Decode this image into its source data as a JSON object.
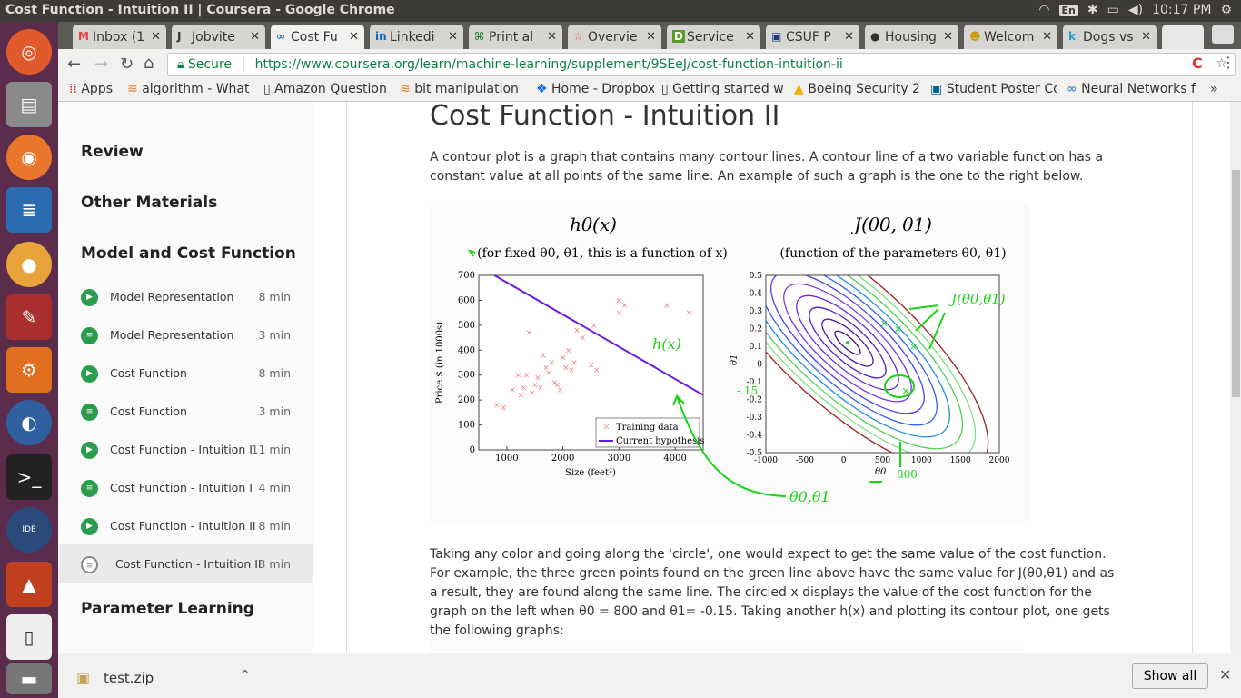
{
  "window": {
    "title": "Cost Function - Intuition II | Coursera - Google Chrome",
    "time": "10:17 PM",
    "lang": "En"
  },
  "tabs": [
    {
      "label": "Inbox (1",
      "icon": "gmail-icon"
    },
    {
      "label": "Jobvite",
      "icon": "jobvite-icon"
    },
    {
      "label": "Cost Fu",
      "icon": "coursera-icon"
    },
    {
      "label": "Linkedi",
      "icon": "linkedin-icon"
    },
    {
      "label": "Print al",
      "icon": "print-icon"
    },
    {
      "label": "Overvie",
      "icon": "star-icon"
    },
    {
      "label": "Service",
      "icon": "d-icon"
    },
    {
      "label": "CSUF P",
      "icon": "csuf-icon"
    },
    {
      "label": "Housing",
      "icon": "github-icon"
    },
    {
      "label": "Welcom",
      "icon": "welcome-icon"
    },
    {
      "label": "Dogs vs",
      "icon": "kaggle-icon"
    }
  ],
  "address": {
    "secure": "Secure",
    "url": "https://www.coursera.org/learn/machine-learning/supplement/9SEeJ/cost-function-intuition-ii"
  },
  "bookmarks": [
    "Apps",
    "algorithm - What i",
    "Amazon Question",
    "bit manipulation -",
    "Home - Dropbox",
    "Getting started wi",
    "Boeing Security 2",
    "Student Poster Co",
    "Neural Networks f"
  ],
  "sidebar": {
    "sections": [
      "Review",
      "Other Materials",
      "Model and Cost Function",
      "Parameter Learning"
    ],
    "items": [
      {
        "label": "Model Representation",
        "duration": "8 min",
        "kind": "video"
      },
      {
        "label": "Model Representation",
        "duration": "3 min",
        "kind": "reading"
      },
      {
        "label": "Cost Function",
        "duration": "8 min",
        "kind": "video"
      },
      {
        "label": "Cost Function",
        "duration": "3 min",
        "kind": "reading"
      },
      {
        "label": "Cost Function - Intuition I",
        "duration": "11 min",
        "kind": "video"
      },
      {
        "label": "Cost Function - Intuition I",
        "duration": "4 min",
        "kind": "reading"
      },
      {
        "label": "Cost Function - Intuition II",
        "duration": "8 min",
        "kind": "video"
      },
      {
        "label": "Cost Function - Intuition II",
        "duration": "3 min",
        "kind": "reading-current"
      }
    ]
  },
  "main": {
    "title": "Cost Function - Intuition II",
    "para1": "A contour plot is a graph that contains many contour lines. A contour line of a two variable function has a constant value at all points of the same line. An example of such a graph is the one to the right below.",
    "para2": "Taking any color and going along the 'circle', one would expect to get the same value of the cost function. For example, the three green points found on the green line above have the same value for J(θ0,θ1) and as a result, they are found along the same line. The circled x displays the value of the cost function for the graph on the left when θ0 = 800 and θ1= -0.15. Taking another h(x) and plotting its contour plot, one gets the following graphs:"
  },
  "figure": {
    "left_title": "hθ(x)",
    "left_sub": "(for fixed θ0, θ1, this is a function of x)",
    "right_title": "J(θ0, θ1)",
    "right_sub": "(function of the parameters θ0, θ1)",
    "legend": [
      "Training data",
      "Current hypothesis"
    ],
    "annot": {
      "hx": "h(x)",
      "j": "J(θ0,θ1)",
      "theta": "θ0,θ1",
      "x800": "800",
      "y015": "-.15"
    }
  },
  "chart_data": [
    {
      "type": "scatter",
      "xlabel": "Size (feet²)",
      "ylabel": "Price $ (in 1000s)",
      "xlim": [
        500,
        4500
      ],
      "ylim": [
        0,
        700
      ],
      "xticks": [
        1000,
        2000,
        3000,
        4000
      ],
      "yticks": [
        0,
        100,
        200,
        300,
        400,
        500,
        600,
        700
      ],
      "series": [
        {
          "name": "Training data",
          "points": [
            [
              820,
              180
            ],
            [
              940,
              170
            ],
            [
              1100,
              240
            ],
            [
              1200,
              300
            ],
            [
              1250,
              220
            ],
            [
              1300,
              250
            ],
            [
              1350,
              300
            ],
            [
              1400,
              470
            ],
            [
              1450,
              230
            ],
            [
              1500,
              260
            ],
            [
              1550,
              290
            ],
            [
              1600,
              250
            ],
            [
              1650,
              380
            ],
            [
              1700,
              330
            ],
            [
              1750,
              310
            ],
            [
              1800,
              350
            ],
            [
              1850,
              270
            ],
            [
              1900,
              260
            ],
            [
              1950,
              240
            ],
            [
              2000,
              370
            ],
            [
              2050,
              330
            ],
            [
              2100,
              400
            ],
            [
              2150,
              320
            ],
            [
              2200,
              350
            ],
            [
              2250,
              480
            ],
            [
              2350,
              450
            ],
            [
              2500,
              340
            ],
            [
              2550,
              500
            ],
            [
              2600,
              320
            ],
            [
              3000,
              600
            ],
            [
              3000,
              550
            ],
            [
              3100,
              580
            ],
            [
              3850,
              580
            ],
            [
              4250,
              550
            ]
          ]
        },
        {
          "name": "Current hypothesis",
          "line": [
            [
              780,
              700
            ],
            [
              4500,
              220
            ]
          ]
        }
      ],
      "legend_position": "bottom-right"
    },
    {
      "type": "contour",
      "xlabel": "θ0",
      "ylabel": "θ1",
      "xlim": [
        -1000,
        2000
      ],
      "ylim": [
        -0.5,
        0.5
      ],
      "xticks": [
        -1000,
        -500,
        0,
        500,
        1000,
        1500,
        2000
      ],
      "yticks": [
        -0.5,
        -0.4,
        -0.3,
        -0.2,
        -0.1,
        0,
        0.1,
        0.2,
        0.3,
        0.4,
        0.5
      ],
      "minimum": [
        50,
        0.12
      ],
      "marked_point": [
        800,
        -0.15
      ]
    }
  ],
  "download": {
    "file": "test.zip",
    "show_all": "Show all"
  }
}
